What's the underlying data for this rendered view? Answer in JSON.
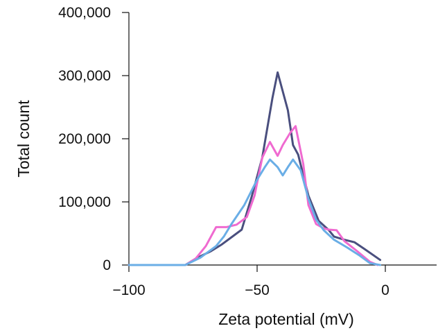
{
  "chart_data": {
    "type": "line",
    "title": "",
    "xlabel": "Zeta potential (mV)",
    "ylabel": "Total count",
    "xlim": [
      -100,
      20
    ],
    "ylim": [
      0,
      400000
    ],
    "x_ticks": [
      {
        "value": -100,
        "label": "−100"
      },
      {
        "value": -50,
        "label": "−50"
      },
      {
        "value": 0,
        "label": "0"
      }
    ],
    "y_ticks": [
      {
        "value": 0,
        "label": "0"
      },
      {
        "value": 100000,
        "label": "100,000"
      },
      {
        "value": 200000,
        "label": "200,000"
      },
      {
        "value": 300000,
        "label": "300,000"
      },
      {
        "value": 400000,
        "label": "400,000"
      }
    ],
    "series": [
      {
        "name": "series-dark",
        "color": "#4a4f7e",
        "points": [
          [
            -100,
            0
          ],
          [
            -78,
            0
          ],
          [
            -74,
            10000
          ],
          [
            -68,
            22000
          ],
          [
            -64,
            32000
          ],
          [
            -60,
            44000
          ],
          [
            -56,
            56000
          ],
          [
            -52,
            110000
          ],
          [
            -48,
            170000
          ],
          [
            -44,
            265000
          ],
          [
            -42,
            305000
          ],
          [
            -38,
            245000
          ],
          [
            -36,
            190000
          ],
          [
            -34,
            175000
          ],
          [
            -30,
            110000
          ],
          [
            -26,
            70000
          ],
          [
            -22,
            55000
          ],
          [
            -20,
            45000
          ],
          [
            -16,
            40000
          ],
          [
            -12,
            36000
          ],
          [
            -8,
            25000
          ],
          [
            -2,
            8000
          ]
        ]
      },
      {
        "name": "series-pink",
        "color": "#ef6ad0",
        "points": [
          [
            -100,
            0
          ],
          [
            -78,
            0
          ],
          [
            -74,
            10000
          ],
          [
            -70,
            30000
          ],
          [
            -66,
            60000
          ],
          [
            -62,
            60000
          ],
          [
            -58,
            64000
          ],
          [
            -54,
            76000
          ],
          [
            -51,
            110000
          ],
          [
            -48,
            170000
          ],
          [
            -45,
            195000
          ],
          [
            -42,
            173000
          ],
          [
            -40,
            190000
          ],
          [
            -37,
            210000
          ],
          [
            -35,
            220000
          ],
          [
            -32,
            160000
          ],
          [
            -30,
            95000
          ],
          [
            -27,
            65000
          ],
          [
            -24,
            58000
          ],
          [
            -22,
            56000
          ],
          [
            -19,
            55000
          ],
          [
            -16,
            38000
          ],
          [
            -11,
            22000
          ],
          [
            -6,
            5000
          ],
          [
            -3,
            0
          ]
        ]
      },
      {
        "name": "series-blue",
        "color": "#6aaee6",
        "points": [
          [
            -100,
            0
          ],
          [
            -78,
            0
          ],
          [
            -72,
            12000
          ],
          [
            -66,
            30000
          ],
          [
            -63,
            45000
          ],
          [
            -60,
            65000
          ],
          [
            -55,
            95000
          ],
          [
            -50,
            135000
          ],
          [
            -47,
            155000
          ],
          [
            -45,
            167000
          ],
          [
            -42,
            155000
          ],
          [
            -40,
            142000
          ],
          [
            -38,
            155000
          ],
          [
            -36,
            167000
          ],
          [
            -33,
            150000
          ],
          [
            -30,
            105000
          ],
          [
            -27,
            72000
          ],
          [
            -24,
            55000
          ],
          [
            -20,
            40000
          ],
          [
            -15,
            28000
          ],
          [
            -10,
            15000
          ],
          [
            -6,
            3000
          ],
          [
            -2,
            0
          ]
        ]
      }
    ]
  }
}
